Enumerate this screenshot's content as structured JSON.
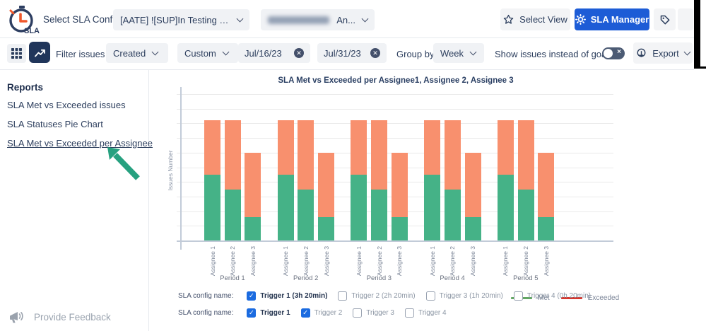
{
  "header": {
    "logo_text": "SLA",
    "select_config_label": "Select SLA Config:",
    "config_dropdown_1": "[AATE] ![SUP]In Testing by QA...",
    "config_dropdown_2_suffix": "An...",
    "config_dropdown_2_redacted": true,
    "select_view_label": "Select View",
    "sla_manager_label": "SLA Manager"
  },
  "toolbar": {
    "filter_label": "Filter issues by:",
    "filter_field": "Created",
    "range_preset": "Custom",
    "date_from": "Jul/16/23",
    "date_to": "Jul/31/23",
    "group_by_label": "Group by",
    "group_by_value": "Week",
    "show_issues_toggle_label": "Show issues instead of goals",
    "show_issues_toggle_on": false,
    "export_label": "Export"
  },
  "sidebar": {
    "title": "Reports",
    "items": [
      {
        "label": "SLA Met vs Exceeded issues",
        "active": false
      },
      {
        "label": "SLA Statuses Pie Chart",
        "active": false
      },
      {
        "label": "SLA Met vs Exceeded per Assignee",
        "active": true
      }
    ],
    "annotation_arrow": {
      "points_to": "SLA Met vs Exceeded per Assignee",
      "color": "#27A180"
    }
  },
  "chart_data": {
    "type": "bar",
    "stacked": true,
    "title": "SLA Met vs Exceeded per Assignee1, Assignee 2, Assignee 3",
    "ylabel": "Issues Number",
    "xlabel": "",
    "ylim": [
      0,
      10
    ],
    "gridlines": true,
    "series_colors": {
      "met": "#45B287",
      "exceeded": "#F8906E"
    },
    "legend": {
      "position": "bottom-right",
      "entries": [
        {
          "label": "Met",
          "color": "#63A764"
        },
        {
          "label": "Exceeded",
          "color": "#D7372E"
        }
      ]
    },
    "groups": [
      {
        "label": "Period 1",
        "bars": [
          {
            "label": "Assignee 1",
            "met": 4.5,
            "exceeded": 3.7
          },
          {
            "label": "Assignee 2",
            "met": 3.5,
            "exceeded": 4.7
          },
          {
            "label": "Assignee 3",
            "met": 1.6,
            "exceeded": 4.4
          }
        ]
      },
      {
        "label": "Period 2",
        "bars": [
          {
            "label": "Assignee 1",
            "met": 4.5,
            "exceeded": 3.7
          },
          {
            "label": "Assignee 2",
            "met": 3.5,
            "exceeded": 4.7
          },
          {
            "label": "Assignee 3",
            "met": 1.6,
            "exceeded": 4.4
          }
        ]
      },
      {
        "label": "Period 3",
        "bars": [
          {
            "label": "Assignee 1",
            "met": 4.5,
            "exceeded": 3.7
          },
          {
            "label": "Assignee 2",
            "met": 3.5,
            "exceeded": 4.7
          },
          {
            "label": "Assignee 3",
            "met": 1.6,
            "exceeded": 4.4
          }
        ]
      },
      {
        "label": "Period 4",
        "bars": [
          {
            "label": "Assignee 1",
            "met": 4.5,
            "exceeded": 3.7
          },
          {
            "label": "Assignee 2",
            "met": 3.5,
            "exceeded": 4.7
          },
          {
            "label": "Assignee 3",
            "met": 1.6,
            "exceeded": 4.4
          }
        ]
      },
      {
        "label": "Period 5",
        "bars": [
          {
            "label": "Assignee 1",
            "met": 4.5,
            "exceeded": 3.7
          },
          {
            "label": "Assignee 2",
            "met": 3.5,
            "exceeded": 4.7
          },
          {
            "label": "Assignee 3",
            "met": 1.6,
            "exceeded": 4.4
          }
        ]
      }
    ]
  },
  "config_filters": {
    "rows": [
      {
        "label": "SLA config name:",
        "options": [
          {
            "label": "Trigger 1 (3h 20min)",
            "checked": true,
            "emphasized": true
          },
          {
            "label": "Trigger 2 (2h 20min)",
            "checked": false,
            "emphasized": false
          },
          {
            "label": "Trigger 3 (1h 20min)",
            "checked": false,
            "emphasized": false
          },
          {
            "label": "Trigger 4 (0h 20min)",
            "checked": false,
            "emphasized": false
          }
        ]
      },
      {
        "label": "SLA config name:",
        "options": [
          {
            "label": "Trigger 1",
            "checked": true,
            "emphasized": true
          },
          {
            "label": "Trigger 2",
            "checked": true,
            "emphasized": false
          },
          {
            "label": "Trigger 3",
            "checked": false,
            "emphasized": false
          },
          {
            "label": "Trigger 4",
            "checked": false,
            "emphasized": false
          }
        ]
      }
    ]
  },
  "footer": {
    "feedback_label": "Provide Feedback"
  },
  "colors": {
    "accent_blue": "#1D5CD6",
    "navy": "#2C3E5D",
    "checkbox_blue": "#1B6BE0",
    "bar_met": "#45B287",
    "bar_exceeded": "#F8906E",
    "arrow_green": "#27A180"
  }
}
